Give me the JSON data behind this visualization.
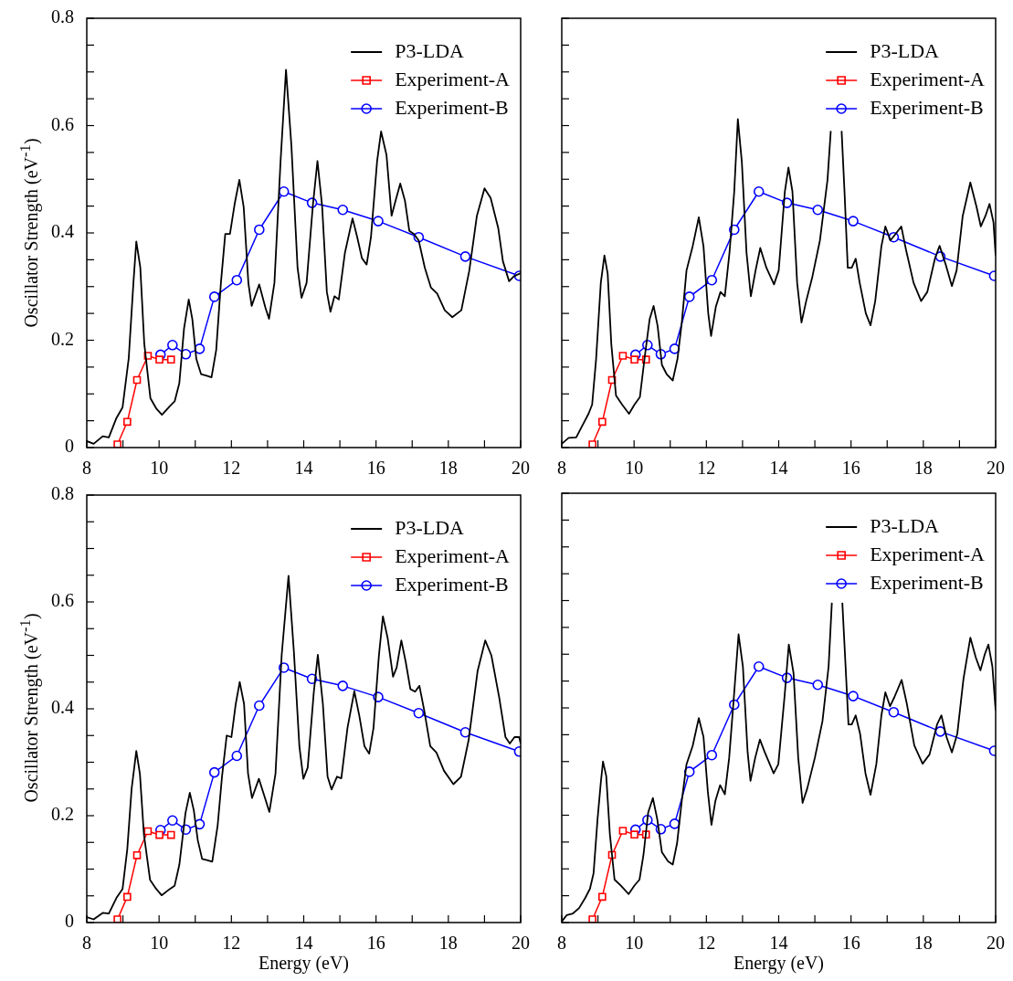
{
  "chart_data": [
    {
      "type": "line",
      "ylabel": "Oscillator Strength (eV$^{-1}$)",
      "xlim": [
        8,
        20
      ],
      "ylim": [
        0,
        0.8
      ],
      "xticks": [
        8,
        {
          "value": 9,
          "label": null
        },
        10,
        {
          "value": 11,
          "label": null
        },
        12,
        {
          "value": 13,
          "label": null
        },
        14,
        {
          "value": 15,
          "label": null
        },
        16,
        {
          "value": 17,
          "label": null
        },
        18,
        {
          "value": 19,
          "label": null
        },
        20
      ],
      "yticks": [
        0,
        {
          "value": 0.05,
          "label": null
        },
        {
          "value": 0.1,
          "label": null
        },
        {
          "value": 0.15,
          "label": null
        },
        0.2,
        {
          "value": 0.25,
          "label": null
        },
        {
          "value": 0.3,
          "label": null
        },
        {
          "value": 0.35,
          "label": null
        },
        0.4,
        {
          "value": 0.45,
          "label": null
        },
        {
          "value": 0.5,
          "label": null
        },
        {
          "value": 0.55,
          "label": null
        },
        0.6,
        {
          "value": 0.65,
          "label": null
        },
        {
          "value": 0.7,
          "label": null
        },
        {
          "value": 0.75,
          "label": null
        },
        0.8
      ],
      "legend": "top right",
      "grid": false,
      "series": [
        {
          "name": "P3-LDA",
          "color": "#000000",
          "marker": "none",
          "x": [
            8.0,
            8.19,
            8.44,
            8.61,
            8.82,
            8.99,
            9.16,
            9.29,
            9.37,
            9.48,
            9.59,
            9.76,
            9.93,
            10.08,
            10.31,
            10.43,
            10.56,
            10.69,
            10.82,
            10.92,
            11.03,
            11.16,
            11.32,
            11.45,
            11.58,
            11.71,
            11.83,
            11.96,
            12.09,
            12.22,
            12.34,
            12.47,
            12.56,
            12.77,
            12.94,
            13.04,
            13.19,
            13.36,
            13.51,
            13.66,
            13.83,
            13.94,
            14.08,
            14.25,
            14.38,
            14.51,
            14.64,
            14.74,
            14.85,
            14.97,
            15.14,
            15.35,
            15.48,
            15.61,
            15.74,
            15.86,
            16.03,
            16.14,
            16.29,
            16.43,
            16.54,
            16.67,
            16.8,
            16.92,
            17.05,
            17.18,
            17.35,
            17.52,
            17.69,
            17.9,
            18.11,
            18.36,
            18.58,
            18.79,
            19.0,
            19.17,
            19.38,
            19.51,
            19.68,
            19.81,
            20.0
          ],
          "values": [
            0.012,
            0.007,
            0.021,
            0.019,
            0.055,
            0.075,
            0.166,
            0.307,
            0.384,
            0.336,
            0.194,
            0.092,
            0.072,
            0.061,
            0.078,
            0.086,
            0.12,
            0.222,
            0.276,
            0.239,
            0.165,
            0.137,
            0.134,
            0.131,
            0.182,
            0.307,
            0.398,
            0.398,
            0.454,
            0.499,
            0.448,
            0.306,
            0.264,
            0.304,
            0.261,
            0.24,
            0.307,
            0.534,
            0.704,
            0.562,
            0.335,
            0.279,
            0.307,
            0.449,
            0.534,
            0.449,
            0.29,
            0.253,
            0.282,
            0.276,
            0.363,
            0.427,
            0.392,
            0.353,
            0.341,
            0.392,
            0.534,
            0.589,
            0.545,
            0.432,
            0.46,
            0.492,
            0.46,
            0.404,
            0.398,
            0.386,
            0.335,
            0.298,
            0.287,
            0.256,
            0.243,
            0.256,
            0.33,
            0.432,
            0.483,
            0.465,
            0.409,
            0.347,
            0.31,
            0.319,
            0.325
          ]
        },
        {
          "name": "Experiment-A",
          "color": "#ff0000",
          "marker": "square",
          "x": [
            8.85,
            9.12,
            9.39,
            9.69,
            10.01,
            10.33
          ],
          "values": [
            0.006,
            0.048,
            0.126,
            0.171,
            0.164,
            0.164
          ]
        },
        {
          "name": "Experiment-B",
          "color": "#0000ff",
          "marker": "circle",
          "x": [
            10.04,
            10.37,
            10.74,
            11.12,
            11.53,
            12.15,
            12.77,
            13.45,
            14.23,
            15.08,
            16.06,
            17.18,
            18.47,
            19.96
          ],
          "values": [
            0.173,
            0.191,
            0.174,
            0.184,
            0.281,
            0.312,
            0.406,
            0.477,
            0.456,
            0.443,
            0.422,
            0.392,
            0.356,
            0.32
          ]
        }
      ]
    },
    {
      "type": "line",
      "xlim": [
        8,
        20
      ],
      "ylim": [
        0,
        0.8
      ],
      "tick_labels": "x",
      "xticks": [
        8,
        {
          "value": 9,
          "label": null
        },
        10,
        {
          "value": 11,
          "label": null
        },
        12,
        {
          "value": 13,
          "label": null
        },
        14,
        {
          "value": 15,
          "label": null
        },
        16,
        {
          "value": 17,
          "label": null
        },
        18,
        {
          "value": 19,
          "label": null
        },
        20
      ],
      "yticks": [
        0,
        {
          "value": 0.05,
          "label": null
        },
        {
          "value": 0.1,
          "label": null
        },
        {
          "value": 0.15,
          "label": null
        },
        0.2,
        {
          "value": 0.25,
          "label": null
        },
        {
          "value": 0.3,
          "label": null
        },
        {
          "value": 0.35,
          "label": null
        },
        0.4,
        {
          "value": 0.45,
          "label": null
        },
        {
          "value": 0.5,
          "label": null
        },
        {
          "value": 0.55,
          "label": null
        },
        0.6,
        {
          "value": 0.65,
          "label": null
        },
        {
          "value": 0.7,
          "label": null
        },
        {
          "value": 0.75,
          "label": null
        },
        0.8
      ],
      "legend": "top right",
      "grid": false,
      "series": [
        {
          "name": "P3-LDA",
          "color": "#000000",
          "marker": "none",
          "x": [
            8.0,
            8.19,
            8.4,
            8.57,
            8.74,
            8.84,
            8.95,
            9.08,
            9.18,
            9.27,
            9.37,
            9.5,
            9.67,
            9.86,
            10.01,
            10.16,
            10.31,
            10.43,
            10.54,
            10.65,
            10.77,
            10.9,
            11.07,
            11.2,
            11.32,
            11.45,
            11.62,
            11.79,
            11.92,
            12.05,
            12.13,
            12.26,
            12.39,
            12.51,
            12.64,
            12.77,
            12.87,
            12.98,
            13.11,
            13.23,
            13.36,
            13.49,
            13.66,
            13.87,
            14.0,
            14.17,
            14.27,
            14.38,
            14.51,
            14.63,
            14.76,
            14.93,
            15.14,
            15.35,
            15.44,
            15.55,
            15.74,
            15.82,
            15.91,
            16.02,
            16.13,
            16.24,
            16.41,
            16.54,
            16.67,
            16.84,
            16.95,
            17.09,
            17.22,
            17.39,
            17.52,
            17.73,
            17.94,
            18.11,
            18.32,
            18.45,
            18.62,
            18.79,
            18.92,
            19.09,
            19.3,
            19.47,
            19.59,
            19.72,
            19.83,
            19.94,
            20.0
          ],
          "values": [
            0.007,
            0.018,
            0.019,
            0.041,
            0.063,
            0.08,
            0.165,
            0.307,
            0.358,
            0.324,
            0.193,
            0.097,
            0.08,
            0.063,
            0.08,
            0.094,
            0.177,
            0.239,
            0.264,
            0.227,
            0.154,
            0.137,
            0.125,
            0.165,
            0.233,
            0.33,
            0.375,
            0.429,
            0.375,
            0.251,
            0.208,
            0.262,
            0.29,
            0.282,
            0.364,
            0.477,
            0.612,
            0.533,
            0.363,
            0.282,
            0.33,
            0.372,
            0.335,
            0.304,
            0.33,
            0.477,
            0.522,
            0.477,
            0.307,
            0.233,
            0.273,
            0.318,
            0.386,
            0.499,
            0.59,
            null,
            0.59,
            0.477,
            0.335,
            0.335,
            0.352,
            0.307,
            0.25,
            0.228,
            0.273,
            0.375,
            0.412,
            0.386,
            0.397,
            0.412,
            0.369,
            0.307,
            0.273,
            0.29,
            0.352,
            0.376,
            0.341,
            0.301,
            0.33,
            0.432,
            0.494,
            0.449,
            0.412,
            0.432,
            0.454,
            0.42,
            0.358
          ]
        },
        {
          "name": "Experiment-A",
          "color": "#ff0000",
          "marker": "square",
          "x": [
            8.85,
            9.12,
            9.39,
            9.69,
            10.01,
            10.33
          ],
          "values": [
            0.006,
            0.048,
            0.126,
            0.171,
            0.164,
            0.164
          ]
        },
        {
          "name": "Experiment-B",
          "color": "#0000ff",
          "marker": "circle",
          "x": [
            10.04,
            10.37,
            10.74,
            11.12,
            11.53,
            12.15,
            12.77,
            13.45,
            14.23,
            15.08,
            16.06,
            17.18,
            18.47,
            19.96
          ],
          "values": [
            0.173,
            0.191,
            0.174,
            0.184,
            0.281,
            0.312,
            0.406,
            0.477,
            0.456,
            0.443,
            0.422,
            0.392,
            0.356,
            0.32
          ]
        }
      ]
    },
    {
      "type": "line",
      "xlabel": "Energy (eV)",
      "ylabel": "Oscillator Strength (eV$^{-1}$)",
      "xlim": [
        8,
        20
      ],
      "ylim": [
        0,
        0.8
      ],
      "xticks": [
        8,
        {
          "value": 9,
          "label": null
        },
        10,
        {
          "value": 11,
          "label": null
        },
        12,
        {
          "value": 13,
          "label": null
        },
        14,
        {
          "value": 15,
          "label": null
        },
        16,
        {
          "value": 17,
          "label": null
        },
        18,
        {
          "value": 19,
          "label": null
        },
        20
      ],
      "yticks": [
        0,
        {
          "value": 0.05,
          "label": null
        },
        {
          "value": 0.1,
          "label": null
        },
        {
          "value": 0.15,
          "label": null
        },
        0.2,
        {
          "value": 0.25,
          "label": null
        },
        {
          "value": 0.3,
          "label": null
        },
        {
          "value": 0.35,
          "label": null
        },
        0.4,
        {
          "value": 0.45,
          "label": null
        },
        {
          "value": 0.5,
          "label": null
        },
        {
          "value": 0.55,
          "label": null
        },
        0.6,
        {
          "value": 0.65,
          "label": null
        },
        {
          "value": 0.7,
          "label": null
        },
        {
          "value": 0.75,
          "label": null
        },
        0.8
      ],
      "legend": "top right",
      "grid": false,
      "series": [
        {
          "name": "P3-LDA",
          "color": "#000000",
          "marker": "none",
          "x": [
            8.0,
            8.19,
            8.44,
            8.61,
            8.82,
            8.99,
            9.12,
            9.24,
            9.37,
            9.47,
            9.58,
            9.75,
            9.92,
            10.07,
            10.3,
            10.43,
            10.56,
            10.73,
            10.85,
            10.96,
            11.07,
            11.19,
            11.32,
            11.47,
            11.62,
            11.74,
            11.87,
            12.0,
            12.12,
            12.23,
            12.35,
            12.46,
            12.57,
            12.76,
            12.93,
            13.05,
            13.22,
            13.39,
            13.58,
            13.73,
            13.88,
            13.99,
            14.11,
            14.28,
            14.39,
            14.53,
            14.66,
            14.77,
            14.92,
            15.04,
            15.21,
            15.4,
            15.54,
            15.68,
            15.81,
            15.93,
            16.08,
            16.19,
            16.32,
            16.47,
            16.57,
            16.7,
            16.82,
            16.95,
            17.08,
            17.2,
            17.33,
            17.5,
            17.67,
            17.88,
            18.14,
            18.35,
            18.56,
            18.81,
            19.02,
            19.19,
            19.41,
            19.58,
            19.7,
            19.83,
            19.96,
            20.0
          ],
          "values": [
            0.01,
            0.006,
            0.018,
            0.017,
            0.046,
            0.063,
            0.137,
            0.25,
            0.321,
            0.278,
            0.165,
            0.08,
            0.063,
            0.051,
            0.063,
            0.069,
            0.108,
            0.205,
            0.243,
            0.21,
            0.154,
            0.119,
            0.117,
            0.114,
            0.182,
            0.273,
            0.35,
            0.347,
            0.409,
            0.45,
            0.409,
            0.279,
            0.233,
            0.269,
            0.233,
            0.207,
            0.279,
            0.5,
            0.649,
            0.505,
            0.33,
            0.269,
            0.29,
            0.432,
            0.501,
            0.409,
            0.273,
            0.249,
            0.273,
            0.27,
            0.364,
            0.433,
            0.386,
            0.33,
            0.316,
            0.364,
            0.5,
            0.573,
            0.533,
            0.46,
            0.477,
            0.528,
            0.488,
            0.437,
            0.432,
            0.443,
            0.398,
            0.33,
            0.318,
            0.284,
            0.259,
            0.273,
            0.341,
            0.471,
            0.528,
            0.5,
            0.42,
            0.347,
            0.335,
            0.347,
            0.347,
            0.335
          ]
        },
        {
          "name": "Experiment-A",
          "color": "#ff0000",
          "marker": "square",
          "x": [
            8.85,
            9.12,
            9.39,
            9.69,
            10.01,
            10.33
          ],
          "values": [
            0.006,
            0.048,
            0.126,
            0.171,
            0.164,
            0.164
          ]
        },
        {
          "name": "Experiment-B",
          "color": "#0000ff",
          "marker": "circle",
          "x": [
            10.04,
            10.37,
            10.74,
            11.12,
            11.53,
            12.15,
            12.77,
            13.45,
            14.23,
            15.08,
            16.06,
            17.18,
            18.47,
            19.96
          ],
          "values": [
            0.173,
            0.191,
            0.174,
            0.184,
            0.281,
            0.312,
            0.406,
            0.477,
            0.456,
            0.443,
            0.422,
            0.392,
            0.356,
            0.32
          ]
        }
      ]
    },
    {
      "type": "line",
      "xlabel": "Energy (eV)",
      "xlim": [
        8,
        20
      ],
      "ylim": [
        0,
        0.8
      ],
      "tick_labels": "x",
      "xticks": [
        8,
        {
          "value": 9,
          "label": null
        },
        10,
        {
          "value": 11,
          "label": null
        },
        12,
        {
          "value": 13,
          "label": null
        },
        14,
        {
          "value": 15,
          "label": null
        },
        16,
        {
          "value": 17,
          "label": null
        },
        18,
        {
          "value": 19,
          "label": null
        },
        20
      ],
      "yticks": [
        0,
        {
          "value": 0.05,
          "label": null
        },
        {
          "value": 0.1,
          "label": null
        },
        {
          "value": 0.15,
          "label": null
        },
        0.2,
        {
          "value": 0.25,
          "label": null
        },
        {
          "value": 0.3,
          "label": null
        },
        {
          "value": 0.35,
          "label": null
        },
        0.4,
        {
          "value": 0.45,
          "label": null
        },
        {
          "value": 0.5,
          "label": null
        },
        {
          "value": 0.55,
          "label": null
        },
        0.6,
        {
          "value": 0.65,
          "label": null
        },
        {
          "value": 0.7,
          "label": null
        },
        {
          "value": 0.75,
          "label": null
        },
        0.8
      ],
      "legend": "top right",
      "grid": false,
      "series": [
        {
          "name": "P3-LDA",
          "color": "#000000",
          "marker": "none",
          "x": [
            8.0,
            8.14,
            8.31,
            8.48,
            8.65,
            8.78,
            8.88,
            8.99,
            9.08,
            9.14,
            9.23,
            9.33,
            9.46,
            9.63,
            9.85,
            10.01,
            10.15,
            10.26,
            10.39,
            10.52,
            10.64,
            10.77,
            10.94,
            11.07,
            11.19,
            11.32,
            11.45,
            11.62,
            11.79,
            11.92,
            12.04,
            12.14,
            12.25,
            12.38,
            12.51,
            12.63,
            12.76,
            12.89,
            13.01,
            13.14,
            13.22,
            13.35,
            13.48,
            13.61,
            13.86,
            13.99,
            14.16,
            14.28,
            14.41,
            14.54,
            14.66,
            14.79,
            15.0,
            15.21,
            15.38,
            15.47,
            15.6,
            15.76,
            15.85,
            15.93,
            16.02,
            16.13,
            16.25,
            16.4,
            16.54,
            16.7,
            16.84,
            16.95,
            17.08,
            17.2,
            17.4,
            17.54,
            17.75,
            17.98,
            18.17,
            18.38,
            18.5,
            18.64,
            18.79,
            18.94,
            19.11,
            19.3,
            19.45,
            19.58,
            19.7,
            19.8,
            19.91,
            20.0
          ],
          "values": [
            0.002,
            0.014,
            0.017,
            0.027,
            0.046,
            0.063,
            0.092,
            0.193,
            0.261,
            0.3,
            0.273,
            0.165,
            0.08,
            0.069,
            0.053,
            0.069,
            0.08,
            0.126,
            0.205,
            0.232,
            0.193,
            0.131,
            0.114,
            0.108,
            0.148,
            0.227,
            0.295,
            0.329,
            0.381,
            0.346,
            0.244,
            0.182,
            0.227,
            0.256,
            0.239,
            0.307,
            0.42,
            0.537,
            0.477,
            0.318,
            0.264,
            0.307,
            0.341,
            0.318,
            0.278,
            0.295,
            0.42,
            0.518,
            0.465,
            0.307,
            0.223,
            0.25,
            0.307,
            0.375,
            0.477,
            0.596,
            null,
            0.596,
            0.477,
            0.369,
            0.369,
            0.386,
            0.352,
            0.278,
            0.238,
            0.295,
            0.386,
            0.429,
            0.403,
            0.42,
            0.452,
            0.409,
            0.33,
            0.296,
            0.313,
            0.369,
            0.386,
            0.346,
            0.317,
            0.352,
            0.454,
            0.531,
            0.494,
            0.47,
            0.5,
            0.518,
            0.477,
            0.395
          ]
        },
        {
          "name": "Experiment-A",
          "color": "#ff0000",
          "marker": "square",
          "x": [
            8.85,
            9.12,
            9.39,
            9.69,
            10.01,
            10.33
          ],
          "values": [
            0.006,
            0.048,
            0.126,
            0.171,
            0.164,
            0.164
          ]
        },
        {
          "name": "Experiment-B",
          "color": "#0000ff",
          "marker": "circle",
          "x": [
            10.04,
            10.37,
            10.74,
            11.12,
            11.53,
            12.15,
            12.77,
            13.45,
            14.23,
            15.08,
            16.06,
            17.18,
            18.47,
            19.96
          ],
          "values": [
            0.173,
            0.191,
            0.174,
            0.184,
            0.281,
            0.312,
            0.406,
            0.477,
            0.456,
            0.443,
            0.422,
            0.392,
            0.356,
            0.32
          ]
        }
      ]
    }
  ]
}
